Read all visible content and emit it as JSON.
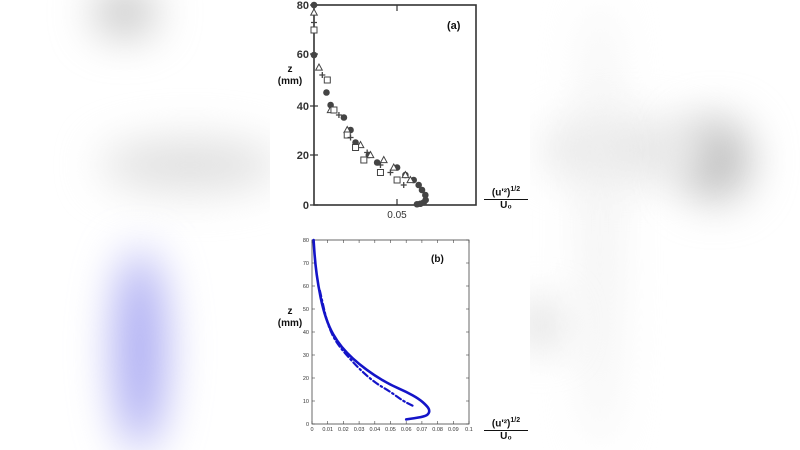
{
  "figure": {
    "panel_a": {
      "label": "(a)",
      "y_label_line1": "z",
      "y_label_line2": "(mm)",
      "x_label_num": "(u'²)",
      "x_label_exp": "1/2",
      "x_label_den": "U₀",
      "y_ticks": [
        "80",
        "60",
        "40",
        "20",
        "0"
      ],
      "x_ticks": [
        "0.05"
      ]
    },
    "panel_b": {
      "label": "(b)",
      "y_label_line1": "z",
      "y_label_line2": "(mm)",
      "x_label_num": "(u'²)",
      "x_label_exp": "1/2",
      "x_label_den": "U₀",
      "y_ticks": [
        "0",
        "10",
        "20",
        "30",
        "40",
        "50",
        "60",
        "70",
        "80"
      ],
      "x_ticks": [
        "0",
        "0.01",
        "0.02",
        "0.03",
        "0.04",
        "0.05",
        "0.06",
        "0.07",
        "0.08",
        "0.09",
        "0.1"
      ]
    },
    "colors": {
      "curve": "#1414c8",
      "markers": "#444444",
      "axes": "#333333"
    }
  },
  "chart_data": [
    {
      "type": "scatter",
      "title": "(a)",
      "xlabel": "(u'²)^1/2 / U0",
      "ylabel": "z (mm)",
      "xlim": [
        0,
        0.0975
      ],
      "ylim": [
        0,
        80
      ],
      "x_ticks": [
        0.05
      ],
      "y_ticks": [
        0,
        20,
        40,
        60,
        80
      ],
      "grid": false,
      "legend": null,
      "series": [
        {
          "name": "filled circles",
          "marker": "circle-filled",
          "x": [
            0.0,
            0.0,
            0.0075,
            0.01,
            0.018,
            0.022,
            0.025,
            0.033,
            0.038,
            0.05,
            0.055,
            0.06,
            0.063,
            0.065,
            0.067,
            0.0672,
            0.066,
            0.064,
            0.062
          ],
          "y": [
            80,
            60,
            45,
            40,
            35,
            30,
            25,
            20,
            17,
            15,
            12,
            10,
            8,
            6,
            4,
            2,
            1,
            0.5,
            0.3
          ]
        },
        {
          "name": "open triangles",
          "marker": "triangle-open",
          "x": [
            0.0,
            0.003,
            0.01,
            0.02,
            0.028,
            0.034,
            0.042,
            0.048,
            0.055,
            0.058
          ],
          "y": [
            77,
            55,
            38,
            30,
            24,
            20,
            18,
            15,
            12,
            10
          ]
        },
        {
          "name": "open squares",
          "marker": "square-open",
          "x": [
            0.0,
            0.008,
            0.012,
            0.02,
            0.025,
            0.03,
            0.04,
            0.05
          ],
          "y": [
            70,
            50,
            38,
            28,
            23,
            18,
            13,
            10
          ]
        },
        {
          "name": "crosses",
          "marker": "plus",
          "x": [
            0.0,
            0.005,
            0.015,
            0.022,
            0.032,
            0.04,
            0.046,
            0.054
          ],
          "y": [
            73,
            52,
            36,
            27,
            21,
            16,
            13,
            8
          ]
        }
      ]
    },
    {
      "type": "line",
      "title": "(b)",
      "xlabel": "(u'²)^1/2 / U0",
      "ylabel": "z (mm)",
      "xlim": [
        0,
        0.1
      ],
      "ylim": [
        0,
        80
      ],
      "x_ticks": [
        0,
        0.01,
        0.02,
        0.03,
        0.04,
        0.05,
        0.06,
        0.07,
        0.08,
        0.09,
        0.1
      ],
      "y_ticks": [
        0,
        10,
        20,
        30,
        40,
        50,
        60,
        70,
        80
      ],
      "grid": false,
      "legend": null,
      "series": [
        {
          "name": "solid",
          "style": "solid",
          "x": [
            0.001,
            0.002,
            0.004,
            0.007,
            0.011,
            0.016,
            0.022,
            0.03,
            0.04,
            0.05,
            0.06,
            0.068,
            0.073,
            0.075,
            0.074,
            0.07,
            0.06
          ],
          "y": [
            80,
            70,
            60,
            50,
            42,
            36,
            31,
            26,
            21,
            17,
            14,
            11,
            8,
            6,
            4,
            3,
            2
          ]
        },
        {
          "name": "dash-dot",
          "style": "dashdot",
          "x": [
            0.005,
            0.007,
            0.009,
            0.012,
            0.016,
            0.022,
            0.03,
            0.04,
            0.05,
            0.058,
            0.064
          ],
          "y": [
            58,
            52,
            46,
            40,
            35,
            30,
            24,
            18,
            14,
            10,
            8
          ]
        }
      ]
    }
  ]
}
